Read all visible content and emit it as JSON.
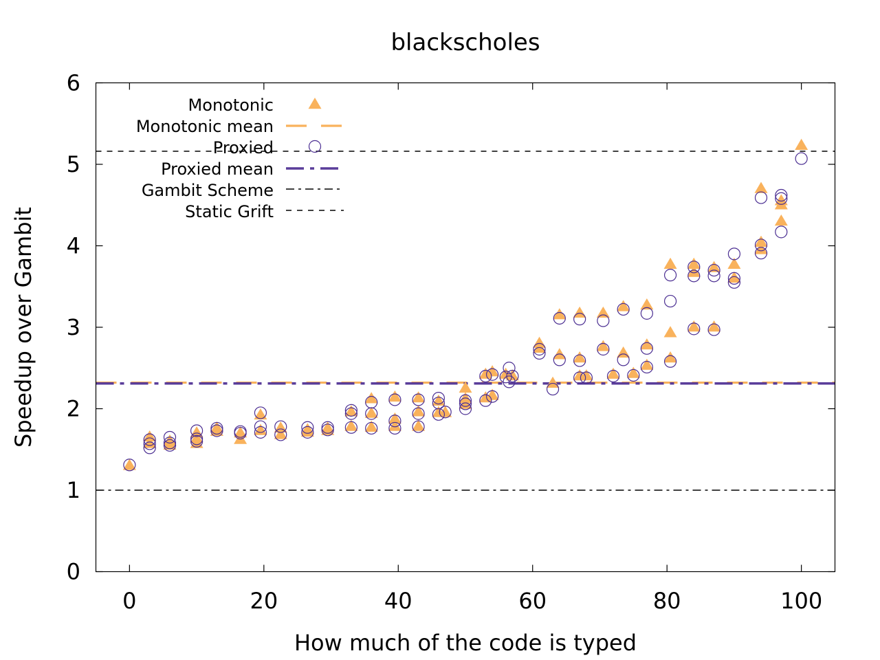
{
  "chart_data": {
    "type": "scatter",
    "title": "blackscholes",
    "xlabel": "How much of the code is typed",
    "ylabel": "Speedup over Gambit",
    "xlim": [
      -5,
      105
    ],
    "ylim": [
      0,
      6
    ],
    "xticks": [
      0,
      20,
      40,
      60,
      80,
      100
    ],
    "yticks": [
      0,
      1,
      2,
      3,
      4,
      5,
      6
    ],
    "grid": false,
    "legend_position": "top-left",
    "colors": {
      "monotonic": "#f9b25c",
      "proxied": "#4b2e92",
      "proxied_mean": "#5a3d9a",
      "reference": "#000000"
    },
    "series": [
      {
        "name": "Monotonic",
        "kind": "points",
        "marker": "triangle",
        "points": [
          [
            0,
            1.3
          ],
          [
            3,
            1.65
          ],
          [
            3,
            1.57
          ],
          [
            6,
            1.6
          ],
          [
            6,
            1.55
          ],
          [
            10,
            1.7
          ],
          [
            10,
            1.57
          ],
          [
            10,
            1.63
          ],
          [
            13,
            1.76
          ],
          [
            13,
            1.72
          ],
          [
            16.5,
            1.7
          ],
          [
            16.5,
            1.62
          ],
          [
            19.5,
            1.92
          ],
          [
            19.5,
            1.73
          ],
          [
            22.5,
            1.76
          ],
          [
            22.5,
            1.68
          ],
          [
            26.5,
            1.74
          ],
          [
            26.5,
            1.71
          ],
          [
            29.5,
            1.76
          ],
          [
            29.5,
            1.73
          ],
          [
            33,
            1.96
          ],
          [
            33,
            1.78
          ],
          [
            36,
            2.12
          ],
          [
            36,
            1.94
          ],
          [
            36,
            1.77
          ],
          [
            39.5,
            2.14
          ],
          [
            39.5,
            1.87
          ],
          [
            39.5,
            1.78
          ],
          [
            43,
            2.13
          ],
          [
            43,
            1.96
          ],
          [
            43,
            1.78
          ],
          [
            46,
            2.09
          ],
          [
            46,
            1.95
          ],
          [
            47,
            1.95
          ],
          [
            50,
            2.25
          ],
          [
            50,
            2.12
          ],
          [
            50,
            2.05
          ],
          [
            53,
            2.42
          ],
          [
            53,
            2.13
          ],
          [
            54,
            2.45
          ],
          [
            54,
            2.16
          ],
          [
            56,
            2.42
          ],
          [
            57,
            2.4
          ],
          [
            61,
            2.8
          ],
          [
            61,
            2.74
          ],
          [
            63,
            2.31
          ],
          [
            64,
            3.15
          ],
          [
            64,
            2.66
          ],
          [
            67,
            3.17
          ],
          [
            67,
            2.62
          ],
          [
            67,
            2.4
          ],
          [
            68,
            2.4
          ],
          [
            70.5,
            3.17
          ],
          [
            70.5,
            2.76
          ],
          [
            72,
            2.42
          ],
          [
            73.5,
            3.25
          ],
          [
            73.5,
            2.68
          ],
          [
            75,
            2.43
          ],
          [
            77,
            3.27
          ],
          [
            77,
            2.78
          ],
          [
            77,
            2.53
          ],
          [
            80.5,
            3.77
          ],
          [
            80.5,
            2.93
          ],
          [
            80.5,
            2.62
          ],
          [
            84,
            3.77
          ],
          [
            84,
            3.67
          ],
          [
            84,
            3.0
          ],
          [
            87,
            3.73
          ],
          [
            87,
            3.0
          ],
          [
            90,
            3.77
          ],
          [
            90,
            3.6
          ],
          [
            94,
            4.7
          ],
          [
            94,
            4.04
          ],
          [
            94,
            3.95
          ],
          [
            97,
            4.55
          ],
          [
            97,
            4.5
          ],
          [
            97,
            4.3
          ],
          [
            100,
            5.23
          ]
        ]
      },
      {
        "name": "Monotonic mean",
        "kind": "hline",
        "y": 2.32
      },
      {
        "name": "Proxied",
        "kind": "points",
        "marker": "circle",
        "points": [
          [
            0,
            1.31
          ],
          [
            3,
            1.62
          ],
          [
            3,
            1.57
          ],
          [
            3,
            1.52
          ],
          [
            6,
            1.65
          ],
          [
            6,
            1.58
          ],
          [
            6,
            1.55
          ],
          [
            10,
            1.73
          ],
          [
            10,
            1.63
          ],
          [
            10,
            1.6
          ],
          [
            13,
            1.76
          ],
          [
            13,
            1.73
          ],
          [
            16.5,
            1.72
          ],
          [
            16.5,
            1.7
          ],
          [
            19.5,
            1.95
          ],
          [
            19.5,
            1.78
          ],
          [
            19.5,
            1.71
          ],
          [
            22.5,
            1.78
          ],
          [
            22.5,
            1.68
          ],
          [
            26.5,
            1.77
          ],
          [
            26.5,
            1.71
          ],
          [
            29.5,
            1.77
          ],
          [
            29.5,
            1.74
          ],
          [
            33,
            1.98
          ],
          [
            33,
            1.94
          ],
          [
            33,
            1.77
          ],
          [
            36,
            2.08
          ],
          [
            36,
            1.94
          ],
          [
            36,
            1.76
          ],
          [
            39.5,
            2.11
          ],
          [
            39.5,
            1.85
          ],
          [
            39.5,
            1.76
          ],
          [
            43,
            2.11
          ],
          [
            43,
            1.94
          ],
          [
            43,
            1.78
          ],
          [
            46,
            2.13
          ],
          [
            46,
            2.07
          ],
          [
            46,
            1.93
          ],
          [
            47,
            1.96
          ],
          [
            50,
            2.1
          ],
          [
            50,
            2.06
          ],
          [
            50,
            2.0
          ],
          [
            53,
            2.4
          ],
          [
            53,
            2.1
          ],
          [
            54,
            2.42
          ],
          [
            54,
            2.15
          ],
          [
            56,
            2.39
          ],
          [
            56.5,
            2.5
          ],
          [
            56.5,
            2.33
          ],
          [
            57,
            2.4
          ],
          [
            61,
            2.73
          ],
          [
            61,
            2.68
          ],
          [
            63,
            2.24
          ],
          [
            64,
            3.11
          ],
          [
            64,
            2.6
          ],
          [
            67,
            3.1
          ],
          [
            67,
            2.59
          ],
          [
            67,
            2.38
          ],
          [
            68,
            2.38
          ],
          [
            70.5,
            3.08
          ],
          [
            70.5,
            2.73
          ],
          [
            72,
            2.4
          ],
          [
            73.5,
            3.22
          ],
          [
            73.5,
            2.6
          ],
          [
            75,
            2.41
          ],
          [
            77,
            3.17
          ],
          [
            77,
            2.74
          ],
          [
            77,
            2.51
          ],
          [
            80.5,
            3.64
          ],
          [
            80.5,
            3.32
          ],
          [
            80.5,
            2.58
          ],
          [
            84,
            3.74
          ],
          [
            84,
            3.63
          ],
          [
            84,
            2.98
          ],
          [
            87,
            3.7
          ],
          [
            87,
            3.63
          ],
          [
            87,
            2.97
          ],
          [
            90,
            3.9
          ],
          [
            90,
            3.6
          ],
          [
            90,
            3.55
          ],
          [
            94,
            4.59
          ],
          [
            94,
            4.01
          ],
          [
            94,
            3.91
          ],
          [
            97,
            4.62
          ],
          [
            97,
            4.58
          ],
          [
            97,
            4.17
          ],
          [
            100,
            5.07
          ]
        ]
      },
      {
        "name": "Proxied mean",
        "kind": "hline",
        "y": 2.31
      },
      {
        "name": "Gambit Scheme",
        "kind": "hline",
        "y": 1.0
      },
      {
        "name": "Static Grift",
        "kind": "hline",
        "y": 5.16
      }
    ]
  }
}
